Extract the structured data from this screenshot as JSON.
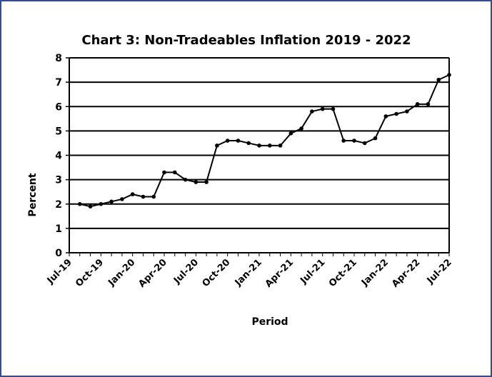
{
  "chart_data": {
    "type": "line",
    "title": "Chart 3: Non-Tradeables  Inflation  2019 - 2022",
    "x_label": "Period",
    "y_label": "Percent",
    "categories": [
      "Jul-19",
      null,
      null,
      "Oct-19",
      null,
      null,
      "Jan-20",
      null,
      null,
      "Apr-20",
      null,
      null,
      "Jul-20",
      null,
      null,
      "Oct-20",
      null,
      null,
      "Jan-21",
      null,
      null,
      "Apr-21",
      null,
      null,
      "Jul-21",
      null,
      null,
      "Oct-21",
      null,
      null,
      "Jan-22",
      null,
      null,
      "Apr-22",
      null,
      null,
      "Jul-22"
    ],
    "series": [
      {
        "name": "Non-Tradeables Inflation",
        "color": "#000000",
        "values": [
          null,
          2.0,
          1.9,
          2.0,
          2.1,
          2.2,
          2.4,
          2.3,
          2.3,
          3.3,
          3.3,
          3.0,
          2.9,
          2.9,
          4.4,
          4.6,
          4.6,
          4.5,
          4.4,
          4.4,
          4.4,
          4.9,
          5.1,
          5.8,
          5.9,
          5.9,
          4.6,
          4.6,
          4.5,
          4.7,
          5.6,
          5.7,
          5.8,
          6.1,
          6.1,
          7.1,
          7.3
        ]
      }
    ],
    "ylim": [
      0,
      8
    ],
    "yticks": [
      0,
      1,
      2,
      3,
      4,
      5,
      6,
      7,
      8
    ],
    "grid": true
  }
}
